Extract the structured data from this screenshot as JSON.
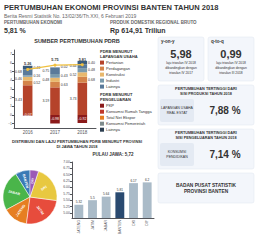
{
  "chart_data": [
    {
      "type": "bar",
      "title": "SUMBER PERTUMBUHAN PDRB",
      "categories": [
        "2016",
        "2017",
        "2018"
      ],
      "stacked": true,
      "data_labels": true,
      "grid": false,
      "ylim": [
        -1.5,
        7.5
      ],
      "yticks": [
        {
          "value": -1,
          "label": "−1"
        },
        0,
        1,
        2,
        3,
        4,
        5,
        6,
        7
      ],
      "series": [
        {
          "color": "#b5432a",
          "values": [
            3.43,
            3.19,
            3.73
          ]
        },
        {
          "color": "#d4844a",
          "values": [
            0.52,
            0.63,
            0.68
          ]
        },
        {
          "color": "#e8b86d",
          "values": [
            0.46,
            0.48,
            0.52
          ]
        },
        {
          "color": "#7a9aac",
          "values": [
            0.16,
            0.43,
            0.48
          ]
        },
        {
          "color": "#5a7a9a",
          "values": [
            0.68,
            0.75,
            0.44
          ]
        },
        {
          "color": "#3a5a7a",
          "values": [
            0.43,
            0.02,
            0.4
          ],
          "value_labels": [
            "0.43",
            "0.02",
            "0.40"
          ]
        },
        {
          "color": "#8b1a1a",
          "values": [
            -0.07,
            -0.98,
            -0.92
          ]
        },
        {
          "type": "line",
          "color": "#f0c040",
          "marker": "circle",
          "line_style": "solid",
          "values": [
            5.26,
            5.75,
            5.81
          ]
        }
      ],
      "annotations": [
        [
          "PERTUMBUHAN EKONOMI PROVINSI BANTEN TAHUN 2018",
          "Berita Resmi Statistik No. 13/02/36/Th.XXI, 6 Februari 2019",
          "PERTUMBUHAN EKONOMI",
          "5,81 %",
          "PRODUK DOMESTIK REGIONAL BRUTO",
          "Rp 614,91 Triliun"
        ],
        [
          "PDRB MENURUT\nLAPANGAN USAHA",
          {
            "text": "Pertanian",
            "color": "#b5432a"
          },
          {
            "text": "Perdagangan",
            "color": "#d4844a"
          },
          {
            "text": "Konstruksi",
            "color": "#e8b86d"
          },
          {
            "text": "Industri",
            "color": "#7a9aac"
          },
          {
            "text": "Lainnya",
            "color": "#5a7a9a"
          },
          "PDRB MENURUT\nPENGELUARAN",
          {
            "text": "PKP",
            "color": "#8b1a1a"
          },
          {
            "text": "Konsumsi Rumah Tangga",
            "color": "#c0392b"
          },
          {
            "text": "Total Net Ekspor",
            "color": "#e67e22"
          },
          {
            "text": "Konsumsi Pemerintah",
            "color": "#7f8c8d"
          },
          {
            "text": "Lainnya",
            "color": "#2c3e50"
          }
        ],
        [
          "y-on-y",
          "5,98",
          "laju triwulan IV 2018",
          "dibandingkan dengan",
          "triwulan IV 2017"
        ],
        [
          "q-to-q",
          "0,99",
          "laju triwulan IV 2018",
          "dibandingkan dengan",
          "triwulan III 2018"
        ],
        [
          "PERTUMBUHAN TERTINGGI DARI\nSISI PRODUKSI TAHUN 2018",
          "LAPANGAN USAHA\nREAL ESTAT",
          "7,88 %"
        ],
        [
          "PERTUMBUHAN TERTINGGI DARI\nSISI PENGELUARAN TAHUN 2018",
          "KONSUMSI\nPENDIDIKAN",
          "7,14 %"
        ],
        [
          "BADAN PUSAT STATISTIK\nPROVINSI BANTEN"
        ]
      ]
    },
    {
      "type": "pie",
      "title": "DISTRIBUSI DAN LAJU PERTUMBUHAN PDRB MENURUT PROVINSI\nDI JAWA TAHUN 2018",
      "categories": [
        "BANTEN",
        "JABAR",
        "JATENG",
        "JATIM",
        "DKI",
        "DIY"
      ],
      "values": [
        8.91,
        24.0,
        15.0,
        25.0,
        22.0,
        5.09
      ],
      "colors": [
        "#3a7ab5",
        "#4ab54a",
        "#e67e22",
        "#e74c3c",
        "#e8c840",
        "#9b59b6"
      ]
    },
    {
      "type": "bar",
      "title": "PULAU JAWA: 5,72",
      "categories": [
        "JATENG",
        "JATIM",
        "JABAR",
        "BANTEN",
        "DKI",
        "DIY"
      ],
      "values": [
        5.32,
        5.5,
        5.64,
        5.81,
        6.17,
        6.2
      ],
      "colors": [
        "#aabbc8",
        "#aabbc8",
        "#aabbc8",
        "#2a4a70",
        "#aabbc8",
        "#aabbc8"
      ],
      "ylim": [
        4.8,
        7.0
      ],
      "yticks": [
        {
          "value": 5.0,
          "label": "5.00"
        },
        {
          "value": 5.25,
          "label": "5.25"
        },
        {
          "value": 5.5,
          "label": "5.50"
        },
        {
          "value": 5.75,
          "label": "5.75"
        },
        {
          "value": 6.0,
          "label": "6.00"
        },
        {
          "value": 6.25,
          "label": "6.25"
        },
        {
          "value": 6.5,
          "label": "6.50"
        },
        {
          "value": 6.75,
          "label": "6.75"
        },
        {
          "value": 7.0,
          "label": "7.00"
        }
      ],
      "data_labels": true,
      "grid": false
    }
  ]
}
